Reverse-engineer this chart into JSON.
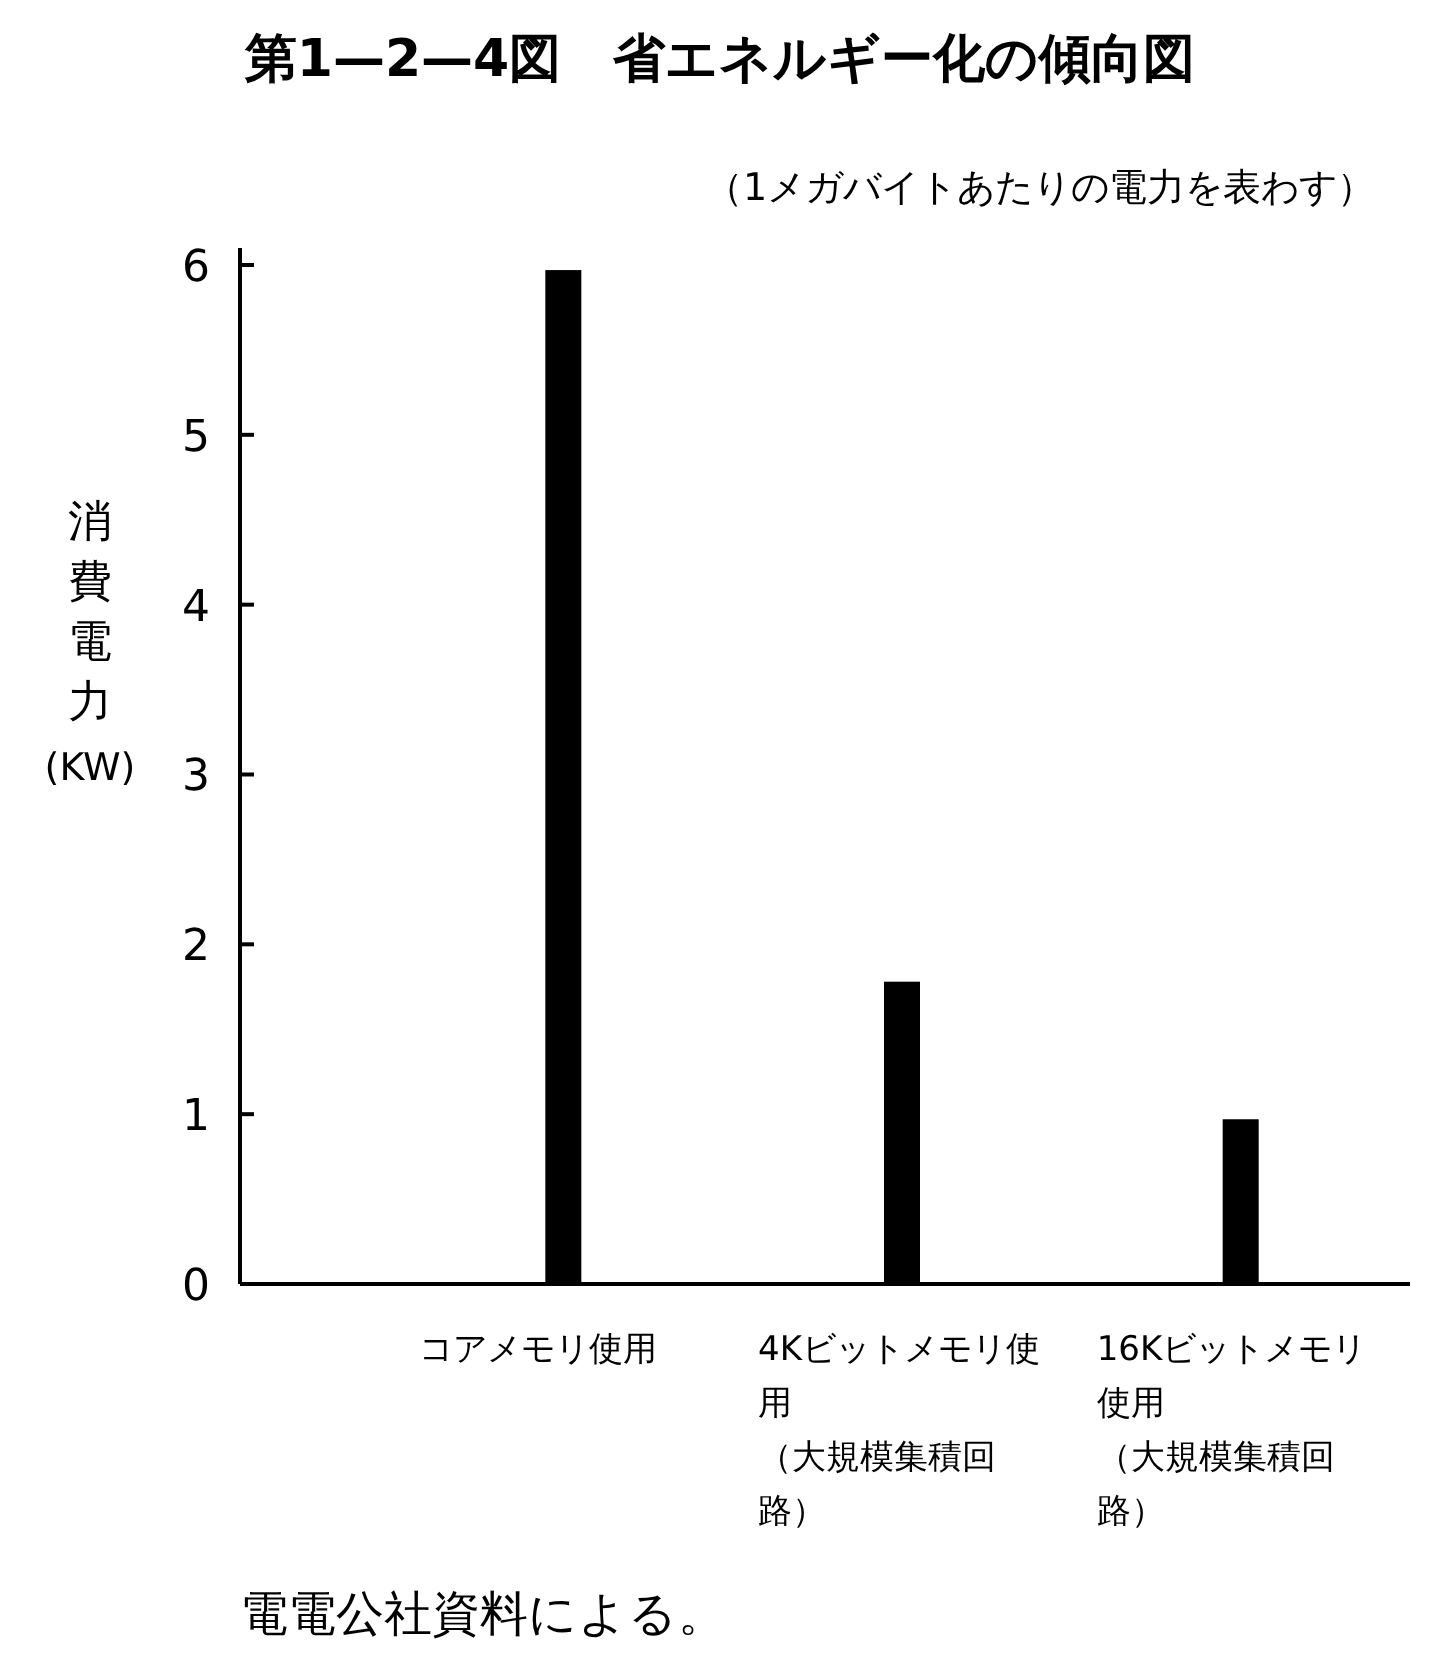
{
  "chart_data": {
    "type": "bar",
    "title": "第1—2—4図　省エネルギー化の傾向図",
    "subtitle": "（1メガバイトあたりの電力を表わす）",
    "ylabel": "消費電力(KW)",
    "categories": [
      "コアメモリ使用",
      "4Kビットメモリ使用（大規模集積回路）",
      "16Kビットメモリ使用（大規模集積回路）"
    ],
    "values": [
      5.97,
      1.78,
      0.97
    ],
    "color": "#000000",
    "ylim": [
      0,
      6.1
    ],
    "yticks": [
      0,
      1,
      2,
      3,
      4,
      5,
      6
    ],
    "grid": false,
    "annotations": [
      "電電公社資料による。"
    ]
  }
}
